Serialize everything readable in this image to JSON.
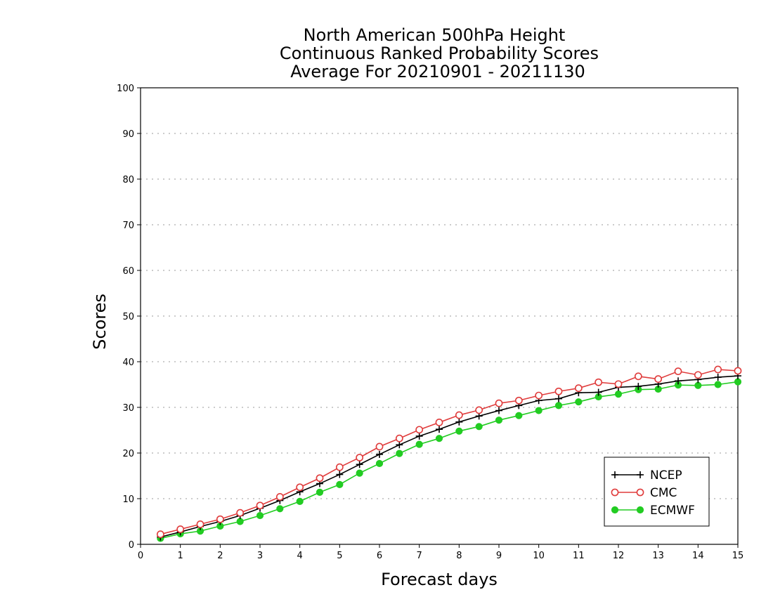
{
  "chart_data": {
    "type": "line",
    "title": [
      "North American 500hPa Height",
      "Continuous Ranked Probability Scores",
      "Average For 20210901 - 20211130"
    ],
    "xlabel": "Forecast days",
    "ylabel": "Scores",
    "xlim": [
      0,
      15
    ],
    "ylim": [
      0,
      100
    ],
    "xticks": [
      0,
      1,
      2,
      3,
      4,
      5,
      6,
      7,
      8,
      9,
      10,
      11,
      12,
      13,
      14,
      15
    ],
    "yticks": [
      0,
      10,
      20,
      30,
      40,
      50,
      60,
      70,
      80,
      90,
      100
    ],
    "grid": "horizontal dotted",
    "legend_position": "bottom-right",
    "x": [
      0.5,
      1,
      1.5,
      2,
      2.5,
      3,
      3.5,
      4,
      4.5,
      5,
      5.5,
      6,
      6.5,
      7,
      7.5,
      8,
      8.5,
      9,
      9.5,
      10,
      10.5,
      11,
      11.5,
      12,
      12.5,
      13,
      13.5,
      14,
      14.5,
      15
    ],
    "series": [
      {
        "name": "NCEP",
        "color": "#000000",
        "marker": "plus",
        "values": [
          1.6,
          2.7,
          3.9,
          5.0,
          6.3,
          7.9,
          9.6,
          11.5,
          13.3,
          15.3,
          17.5,
          19.7,
          21.8,
          23.7,
          25.2,
          26.8,
          28.1,
          29.3,
          30.4,
          31.5,
          31.9,
          33.2,
          33.3,
          34.4,
          34.6,
          35.1,
          35.8,
          36.1,
          36.6,
          36.9
        ]
      },
      {
        "name": "CMC",
        "color": "#e03c3c",
        "marker": "open-circle",
        "values": [
          2.2,
          3.3,
          4.4,
          5.5,
          6.9,
          8.5,
          10.4,
          12.5,
          14.5,
          16.9,
          19.0,
          21.4,
          23.2,
          25.1,
          26.7,
          28.3,
          29.4,
          30.9,
          31.5,
          32.6,
          33.5,
          34.2,
          35.5,
          35.1,
          36.8,
          36.2,
          37.9,
          37.1,
          38.3,
          38.0
        ]
      },
      {
        "name": "ECMWF",
        "color": "#22cc22",
        "marker": "filled-circle",
        "values": [
          1.3,
          2.3,
          2.9,
          4.0,
          5.0,
          6.3,
          7.8,
          9.4,
          11.4,
          13.1,
          15.6,
          17.7,
          19.9,
          21.9,
          23.2,
          24.8,
          25.8,
          27.2,
          28.2,
          29.3,
          30.4,
          31.2,
          32.3,
          32.9,
          33.9,
          34.0,
          34.9,
          34.8,
          35.0,
          35.6
        ]
      }
    ]
  }
}
